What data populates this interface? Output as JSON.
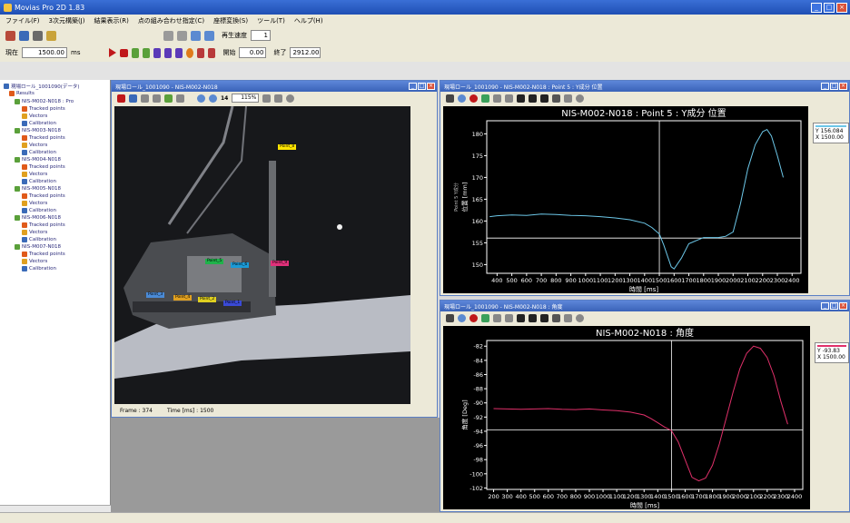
{
  "app": {
    "title": "Movias Pro 2D 1.83"
  },
  "menu": [
    "ファイル(F)",
    "3次元構築(J)",
    "結果表示(R)",
    "点の組み合わせ指定(C)",
    "座標変換(S)",
    "ツール(T)",
    "ヘルプ(H)"
  ],
  "toolbar2": {
    "speed_label": "再生速度",
    "speed_value": "1"
  },
  "toolbar3": {
    "current_label": "現在",
    "current_value": "1500.00",
    "current_unit": "ms",
    "start_label": "開始",
    "start_value": "0.00",
    "end_label": "終了",
    "end_value": "2912.00"
  },
  "tree": {
    "root": "現場ロール_1001090(データ)",
    "results": "Results",
    "groups": [
      {
        "name": "NIS-M002-N018 : Pro",
        "children": [
          "Tracked points",
          "Vectors",
          "Calibration"
        ]
      },
      {
        "name": "NIS-M003-N018",
        "children": [
          "Tracked points",
          "Vectors",
          "Calibration"
        ]
      },
      {
        "name": "NIS-M004-N018",
        "children": [
          "Tracked points",
          "Vectors",
          "Calibration"
        ]
      },
      {
        "name": "NIS-M005-N018",
        "children": [
          "Tracked points",
          "Vectors",
          "Calibration"
        ]
      },
      {
        "name": "NIS-M006-N018",
        "children": [
          "Tracked points",
          "Vectors",
          "Calibration"
        ]
      },
      {
        "name": "NIS-M007-N018",
        "children": [
          "Tracked points",
          "Vectors",
          "Calibration"
        ]
      }
    ]
  },
  "video_window": {
    "title": "現場ロール_1001090 - NIS-M002-N018",
    "zoom": "115%",
    "zoom_num": "14",
    "labels": [
      "Point_8",
      "Point_5",
      "Point_6",
      "Point_9",
      "Point_3",
      "Point_4",
      "Point_2",
      "Point_1"
    ],
    "status_frame": "Frame : 374",
    "status_time": "Time [ms] : 1500"
  },
  "chart_window_1": {
    "title": "現場ロール_1001090 - NIS-M002-N018 : Point 5 : Y成分 位置",
    "legend_y": "Y 156.084",
    "legend_x": "X 1500.00"
  },
  "chart_window_2": {
    "title": "現場ロール_1001090 - NIS-M002-N018 : 角度",
    "legend_y": "Y -93.83",
    "legend_x": "X 1500.00"
  },
  "chart_data": [
    {
      "type": "line",
      "title": "NIS-M002-N018 : Point 5 : Y成分 位置",
      "xlabel": "時間 [ms]",
      "ylabel": "位置 [mm]",
      "y_tag": "Point 5 Y成分",
      "xticks": [
        400,
        500,
        600,
        700,
        800,
        900,
        1000,
        1100,
        1200,
        1300,
        1400,
        1500,
        1600,
        1700,
        1800,
        1900,
        2000,
        2100,
        2200,
        2300,
        2400
      ],
      "xlim": [
        330,
        2460
      ],
      "yticks": [
        150,
        155,
        160,
        165,
        170,
        175,
        180
      ],
      "ylim": [
        148,
        183
      ],
      "crosshair": {
        "x": 1500,
        "y": 156.084
      },
      "series": [
        {
          "color": "#6cc7e8",
          "x": [
            350,
            400,
            500,
            600,
            700,
            800,
            900,
            1000,
            1100,
            1200,
            1300,
            1400,
            1450,
            1500,
            1530,
            1560,
            1580,
            1600,
            1650,
            1700,
            1800,
            1900,
            1950,
            2000,
            2050,
            2100,
            2150,
            2200,
            2230,
            2260,
            2300,
            2340
          ],
          "y": [
            161.0,
            161.2,
            161.4,
            161.3,
            161.6,
            161.5,
            161.3,
            161.2,
            161.0,
            160.7,
            160.3,
            159.5,
            158.5,
            157.0,
            154.5,
            151.5,
            149.5,
            149.0,
            151.5,
            154.8,
            156.2,
            156.2,
            156.5,
            157.5,
            164.0,
            172.0,
            177.5,
            180.5,
            181.0,
            179.5,
            175.0,
            170.0
          ]
        }
      ]
    },
    {
      "type": "line",
      "title": "NIS-M002-N018 : 角度",
      "xlabel": "時間 [ms]",
      "ylabel": "角度 [Deg]",
      "xticks": [
        200,
        300,
        400,
        500,
        600,
        700,
        800,
        900,
        1000,
        1100,
        1200,
        1300,
        1400,
        1500,
        1600,
        1700,
        1800,
        1900,
        2000,
        2100,
        2200,
        2300,
        2400
      ],
      "xlim": [
        150,
        2460
      ],
      "yticks": [
        -102,
        -100,
        -98,
        -96,
        -94,
        -92,
        -90,
        -88,
        -86,
        -84,
        -82
      ],
      "ylim": [
        -102.2,
        -81.2
      ],
      "crosshair": {
        "x": 1500,
        "y": -93.83
      },
      "series": [
        {
          "color": "#e0306a",
          "x": [
            200,
            300,
            400,
            500,
            600,
            700,
            800,
            900,
            1000,
            1100,
            1200,
            1300,
            1350,
            1400,
            1450,
            1500,
            1550,
            1600,
            1650,
            1700,
            1750,
            1800,
            1850,
            1900,
            1950,
            2000,
            2050,
            2100,
            2150,
            2200,
            2250,
            2300,
            2350
          ],
          "y": [
            -90.8,
            -90.85,
            -90.9,
            -90.85,
            -90.8,
            -90.9,
            -90.95,
            -90.85,
            -91.0,
            -91.1,
            -91.3,
            -91.7,
            -92.2,
            -92.8,
            -93.4,
            -93.9,
            -95.5,
            -98.0,
            -100.5,
            -101.0,
            -100.6,
            -98.8,
            -95.8,
            -92.2,
            -88.5,
            -85.2,
            -83.0,
            -82.0,
            -82.3,
            -83.6,
            -86.2,
            -89.8,
            -93.0
          ]
        }
      ]
    }
  ]
}
